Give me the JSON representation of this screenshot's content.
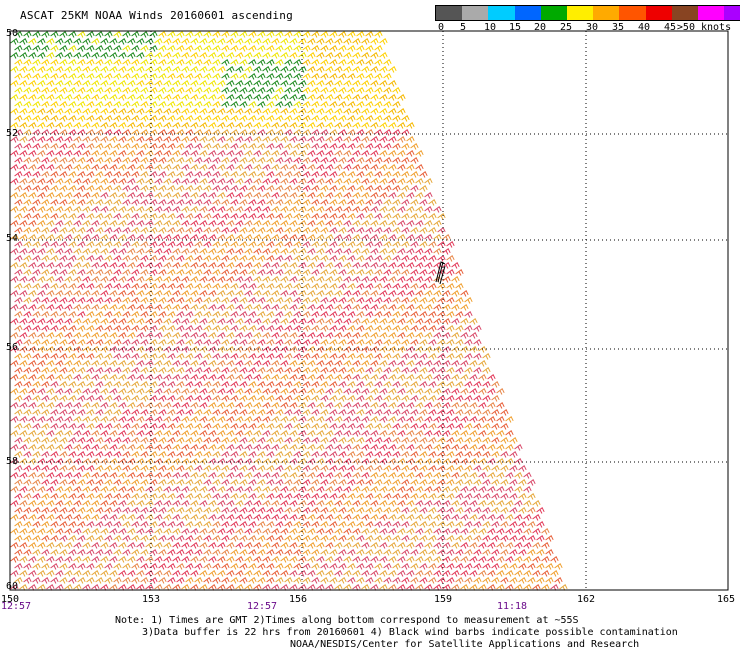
{
  "title": "ASCAT 25KM NOAA Winds 20160601 ascending",
  "legend": {
    "unit_label": ">50 knots",
    "ticks": [
      "0",
      "5",
      "10",
      "15",
      "20",
      "25",
      "30",
      "35",
      "40",
      "45"
    ],
    "colors": [
      "#555555",
      "#aaaaaa",
      "#00ccff",
      "#0066ff",
      "#00aa00",
      "#ffee00",
      "#ffaa00",
      "#ff5500",
      "#ee0000",
      "#884422",
      "#ff00ff",
      "#aa00ff",
      "#5500aa"
    ]
  },
  "map": {
    "lat_range": [
      "-50",
      "-60"
    ],
    "lon_range": [
      "150",
      "165"
    ],
    "lat_labels": [
      "50",
      "52",
      "54",
      "56",
      "58",
      "60"
    ],
    "lon_labels": [
      "150",
      "153",
      "156",
      "159",
      "162",
      "165"
    ],
    "time_labels": [
      "12:57",
      "12:57",
      "11:18"
    ],
    "contamination_marker": "black wind barbs near 54.5S 159E"
  },
  "notes": {
    "line1": "Note: 1) Times are GMT 2)Times along bottom correspond to measurement at ~55S",
    "line2": "3)Data buffer is 22 hrs from 20160601 4) Black wind barbs indicate possible contamination",
    "line3": "NOAA/NESDIS/Center for Satellite Applications and Research"
  }
}
